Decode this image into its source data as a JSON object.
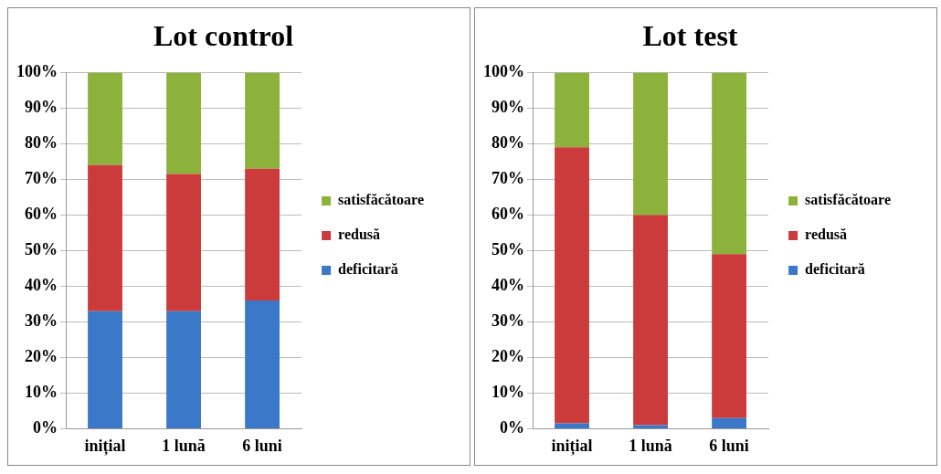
{
  "chart_data": [
    {
      "type": "bar",
      "title": "Lot control",
      "categories": [
        "inițial",
        "1 lună",
        "6 luni"
      ],
      "stacked": true,
      "ylim": [
        0,
        100
      ],
      "yticks": [
        {
          "value": 0,
          "label": "0%"
        },
        {
          "value": 10,
          "label": "10%"
        },
        {
          "value": 20,
          "label": "20%"
        },
        {
          "value": 30,
          "label": "30%"
        },
        {
          "value": 40,
          "label": "40%"
        },
        {
          "value": 50,
          "label": "50%"
        },
        {
          "value": 60,
          "label": "60%"
        },
        {
          "value": 70,
          "label": "70%"
        },
        {
          "value": 80,
          "label": "80%"
        },
        {
          "value": 90,
          "label": "90%"
        },
        {
          "value": 100,
          "label": "100%"
        }
      ],
      "grid": "y",
      "legend": "right",
      "series": [
        {
          "name": "deficitară",
          "color": "#3b78c8",
          "values": [
            33,
            33,
            36
          ]
        },
        {
          "name": "redusă",
          "color": "#cc3b3b",
          "values": [
            41,
            38.5,
            37
          ]
        },
        {
          "name": "satisfăcătoare",
          "color": "#8cb23c",
          "values": [
            26,
            28.5,
            27
          ]
        }
      ]
    },
    {
      "type": "bar",
      "title": "Lot test",
      "categories": [
        "inițial",
        "1 lună",
        "6 luni"
      ],
      "stacked": true,
      "ylim": [
        0,
        100
      ],
      "yticks": [
        {
          "value": 0,
          "label": "0%"
        },
        {
          "value": 10,
          "label": "10%"
        },
        {
          "value": 20,
          "label": "20%"
        },
        {
          "value": 30,
          "label": "30%"
        },
        {
          "value": 40,
          "label": "40%"
        },
        {
          "value": 50,
          "label": "50%"
        },
        {
          "value": 60,
          "label": "60%"
        },
        {
          "value": 70,
          "label": "70%"
        },
        {
          "value": 80,
          "label": "80%"
        },
        {
          "value": 90,
          "label": "90%"
        },
        {
          "value": 100,
          "label": "100%"
        }
      ],
      "grid": "y",
      "legend": "right",
      "series": [
        {
          "name": "deficitară",
          "color": "#3b78c8",
          "values": [
            1.5,
            1,
            3
          ]
        },
        {
          "name": "redusă",
          "color": "#cc3b3b",
          "values": [
            77.5,
            59,
            46
          ]
        },
        {
          "name": "satisfăcătoare",
          "color": "#8cb23c",
          "values": [
            21,
            40,
            51
          ]
        }
      ]
    }
  ]
}
